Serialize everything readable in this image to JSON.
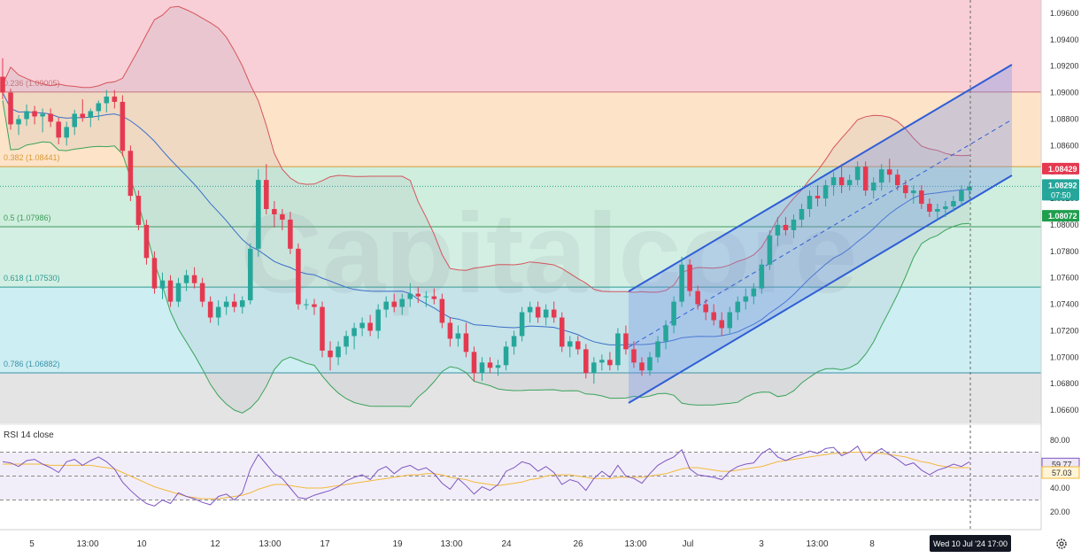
{
  "chart_data": {
    "type": "candlestick",
    "watermark": "Capitalcore",
    "colors": {
      "up": "#26a69a",
      "down": "#e53950",
      "bb_upper": "#d6545c",
      "bb_middle": "#3b6fc8",
      "bb_lower": "#3aa35a",
      "channel": "#2f5ed6",
      "rsi": "#7e57c2",
      "rsi_ma": "#f2b93b",
      "price_tag": "#26a69a",
      "red_tag": "#e53950",
      "green_tag": "#1f9e4e"
    },
    "price_axis": {
      "min": 1.065,
      "max": 1.097,
      "ticks": [
        "1.09600",
        "1.09400",
        "1.09200",
        "1.09000",
        "1.08800",
        "1.08600",
        "1.08400",
        "1.08200",
        "1.08000",
        "1.07800",
        "1.07600",
        "1.07400",
        "1.07200",
        "1.07000",
        "1.06800",
        "1.06600"
      ]
    },
    "fib_levels": [
      {
        "label": "0.236 (1.09005)",
        "value": 1.09005,
        "color": "#c8727a"
      },
      {
        "label": "0.382 (1.08441)",
        "value": 1.08441,
        "color": "#d89a3a"
      },
      {
        "label": "0.5 (1.07986)",
        "value": 1.07986,
        "color": "#3e9a5c"
      },
      {
        "label": "0.618 (1.07530)",
        "value": 1.0753,
        "color": "#2f9a91"
      },
      {
        "label": "0.786 (1.06882)",
        "value": 1.06882,
        "color": "#3a93a8"
      }
    ],
    "fib_zones": [
      {
        "from": 1.09005,
        "to": 1.097,
        "color": "#f8cfd6"
      },
      {
        "from": 1.08441,
        "to": 1.09005,
        "color": "#fde3c8"
      },
      {
        "from": 1.07986,
        "to": 1.08441,
        "color": "#cfeedd"
      },
      {
        "from": 1.0753,
        "to": 1.07986,
        "color": "#d3efe3"
      },
      {
        "from": 1.06882,
        "to": 1.0753,
        "color": "#cdeef2"
      },
      {
        "from": 1.065,
        "to": 1.06882,
        "color": "#e4e4e4"
      }
    ],
    "price_tags": [
      {
        "text": "1.08429",
        "value": 1.08429,
        "kind": "red"
      },
      {
        "text": "1.08292",
        "sub": "07:50",
        "value": 1.08292,
        "kind": "price"
      },
      {
        "text": "1.08072",
        "value": 1.08072,
        "kind": "green"
      }
    ],
    "time_labels": [
      "5",
      "13:00",
      "10",
      "12",
      "13:00",
      "17",
      "19",
      "13:00",
      "24",
      "26",
      "13:00",
      "Jul",
      "3",
      "13:00",
      "8"
    ],
    "crosshair_label": "Wed 10 Jul '24   17:00",
    "settings_icon": "gear-icon",
    "candles": [
      [
        1.0912,
        1.0926,
        1.0895,
        1.09
      ],
      [
        1.09,
        1.0903,
        1.0872,
        1.0876
      ],
      [
        1.0876,
        1.0883,
        1.0868,
        1.088
      ],
      [
        1.088,
        1.0891,
        1.0875,
        1.0886
      ],
      [
        1.0886,
        1.089,
        1.0876,
        1.0882
      ],
      [
        1.0882,
        1.0888,
        1.087,
        1.0884
      ],
      [
        1.0884,
        1.0888,
        1.0874,
        1.0878
      ],
      [
        1.0878,
        1.0881,
        1.0861,
        1.0866
      ],
      [
        1.0866,
        1.0878,
        1.086,
        1.0874
      ],
      [
        1.0874,
        1.0887,
        1.0868,
        1.0884
      ],
      [
        1.0884,
        1.0895,
        1.0878,
        1.0881
      ],
      [
        1.0881,
        1.0888,
        1.0874,
        1.0886
      ],
      [
        1.0886,
        1.0894,
        1.0879,
        1.0892
      ],
      [
        1.0892,
        1.0902,
        1.0885,
        1.0897
      ],
      [
        1.0897,
        1.0902,
        1.0888,
        1.0893
      ],
      [
        1.0893,
        1.0898,
        1.0852,
        1.0856
      ],
      [
        1.0856,
        1.086,
        1.0818,
        1.0822
      ],
      [
        1.0822,
        1.0826,
        1.0796,
        1.08
      ],
      [
        1.08,
        1.0804,
        1.077,
        1.0775
      ],
      [
        1.0775,
        1.078,
        1.0748,
        1.0752
      ],
      [
        1.0752,
        1.0764,
        1.0744,
        1.0758
      ],
      [
        1.0758,
        1.0762,
        1.0738,
        1.0742
      ],
      [
        1.0742,
        1.076,
        1.0738,
        1.0756
      ],
      [
        1.0756,
        1.0766,
        1.075,
        1.0762
      ],
      [
        1.0762,
        1.0768,
        1.0752,
        1.0756
      ],
      [
        1.0756,
        1.076,
        1.0738,
        1.0742
      ],
      [
        1.0742,
        1.0746,
        1.0726,
        1.073
      ],
      [
        1.073,
        1.0743,
        1.0724,
        1.0738
      ],
      [
        1.0738,
        1.0746,
        1.0732,
        1.0742
      ],
      [
        1.0742,
        1.0748,
        1.0734,
        1.0738
      ],
      [
        1.0738,
        1.0746,
        1.0733,
        1.0743
      ],
      [
        1.0743,
        1.0786,
        1.074,
        1.0782
      ],
      [
        1.0782,
        1.0842,
        1.0776,
        1.0834
      ],
      [
        1.0834,
        1.0846,
        1.0808,
        1.0812
      ],
      [
        1.0812,
        1.0818,
        1.0798,
        1.0808
      ],
      [
        1.0808,
        1.0812,
        1.0796,
        1.0804
      ],
      [
        1.0804,
        1.081,
        1.0778,
        1.0782
      ],
      [
        1.0782,
        1.0786,
        1.0736,
        1.074
      ],
      [
        1.074,
        1.0744,
        1.0736,
        1.074
      ],
      [
        1.074,
        1.0744,
        1.0732,
        1.0738
      ],
      [
        1.0738,
        1.0742,
        1.07,
        1.0705
      ],
      [
        1.0705,
        1.0712,
        1.069,
        1.07
      ],
      [
        1.07,
        1.0712,
        1.0694,
        1.0708
      ],
      [
        1.0708,
        1.072,
        1.0702,
        1.0716
      ],
      [
        1.0716,
        1.0726,
        1.0706,
        1.0722
      ],
      [
        1.0722,
        1.073,
        1.0716,
        1.0726
      ],
      [
        1.0726,
        1.0732,
        1.0716,
        1.072
      ],
      [
        1.072,
        1.074,
        1.0714,
        1.0736
      ],
      [
        1.0736,
        1.0746,
        1.073,
        1.0742
      ],
      [
        1.0742,
        1.0748,
        1.0734,
        1.0738
      ],
      [
        1.0738,
        1.0748,
        1.0732,
        1.0744
      ],
      [
        1.0744,
        1.0756,
        1.0738,
        1.0748
      ],
      [
        1.0748,
        1.0753,
        1.0741,
        1.0746
      ],
      [
        1.0746,
        1.075,
        1.0738,
        1.0746
      ],
      [
        1.0746,
        1.0752,
        1.074,
        1.0744
      ],
      [
        1.0744,
        1.0748,
        1.0722,
        1.0726
      ],
      [
        1.0726,
        1.073,
        1.0708,
        1.0714
      ],
      [
        1.0714,
        1.0724,
        1.0708,
        1.0718
      ],
      [
        1.0718,
        1.0726,
        1.07,
        1.0704
      ],
      [
        1.0704,
        1.0708,
        1.0682,
        1.0688
      ],
      [
        1.0688,
        1.07,
        1.0682,
        1.0696
      ],
      [
        1.0696,
        1.07,
        1.0688,
        1.0692
      ],
      [
        1.0692,
        1.0698,
        1.0686,
        1.0694
      ],
      [
        1.0694,
        1.0712,
        1.069,
        1.0708
      ],
      [
        1.0708,
        1.072,
        1.0702,
        1.0716
      ],
      [
        1.0716,
        1.0738,
        1.0712,
        1.0734
      ],
      [
        1.0734,
        1.0742,
        1.0726,
        1.0738
      ],
      [
        1.0738,
        1.0742,
        1.0726,
        1.073
      ],
      [
        1.073,
        1.074,
        1.0724,
        1.0736
      ],
      [
        1.0736,
        1.0742,
        1.0726,
        1.073
      ],
      [
        1.073,
        1.0734,
        1.0704,
        1.0708
      ],
      [
        1.0708,
        1.0716,
        1.07,
        1.0712
      ],
      [
        1.0712,
        1.0716,
        1.0702,
        1.0706
      ],
      [
        1.0706,
        1.071,
        1.0684,
        1.0688
      ],
      [
        1.0688,
        1.07,
        1.068,
        1.0696
      ],
      [
        1.0696,
        1.0702,
        1.069,
        1.0698
      ],
      [
        1.0698,
        1.0704,
        1.069,
        1.0694
      ],
      [
        1.0694,
        1.0722,
        1.069,
        1.0718
      ],
      [
        1.0718,
        1.0724,
        1.0702,
        1.0706
      ],
      [
        1.0706,
        1.0712,
        1.0692,
        1.0696
      ],
      [
        1.0696,
        1.07,
        1.0686,
        1.069
      ],
      [
        1.069,
        1.0704,
        1.0686,
        1.07
      ],
      [
        1.07,
        1.0716,
        1.0696,
        1.0712
      ],
      [
        1.0712,
        1.0728,
        1.0706,
        1.0724
      ],
      [
        1.0724,
        1.0746,
        1.0718,
        1.0742
      ],
      [
        1.0742,
        1.0776,
        1.0738,
        1.077
      ],
      [
        1.077,
        1.0774,
        1.0746,
        1.075
      ],
      [
        1.075,
        1.0754,
        1.0736,
        1.074
      ],
      [
        1.074,
        1.0744,
        1.0728,
        1.0734
      ],
      [
        1.0734,
        1.074,
        1.0724,
        1.0728
      ],
      [
        1.0728,
        1.0734,
        1.0716,
        1.0722
      ],
      [
        1.0722,
        1.0738,
        1.0718,
        1.0734
      ],
      [
        1.0734,
        1.0746,
        1.0728,
        1.0742
      ],
      [
        1.0742,
        1.0752,
        1.0736,
        1.0746
      ],
      [
        1.0746,
        1.0756,
        1.074,
        1.0752
      ],
      [
        1.0752,
        1.0774,
        1.0748,
        1.077
      ],
      [
        1.077,
        1.0796,
        1.0766,
        1.0792
      ],
      [
        1.0792,
        1.0806,
        1.0784,
        1.08
      ],
      [
        1.08,
        1.0806,
        1.0792,
        1.0796
      ],
      [
        1.0796,
        1.0808,
        1.079,
        1.0804
      ],
      [
        1.0804,
        1.0816,
        1.0798,
        1.0812
      ],
      [
        1.0812,
        1.0826,
        1.0806,
        1.0822
      ],
      [
        1.0822,
        1.083,
        1.0814,
        1.082
      ],
      [
        1.082,
        1.0834,
        1.0814,
        1.083
      ],
      [
        1.083,
        1.084,
        1.0822,
        1.0836
      ],
      [
        1.0836,
        1.0846,
        1.0824,
        1.083
      ],
      [
        1.083,
        1.0838,
        1.0826,
        1.0834
      ],
      [
        1.0834,
        1.0848,
        1.083,
        1.0844
      ],
      [
        1.0844,
        1.0848,
        1.0822,
        1.0826
      ],
      [
        1.0826,
        1.0836,
        1.082,
        1.0832
      ],
      [
        1.0832,
        1.0846,
        1.0826,
        1.0842
      ],
      [
        1.0842,
        1.085,
        1.0832,
        1.0838
      ],
      [
        1.0838,
        1.0842,
        1.0826,
        1.083
      ],
      [
        1.083,
        1.0834,
        1.082,
        1.0824
      ],
      [
        1.0824,
        1.083,
        1.0816,
        1.0826
      ],
      [
        1.0826,
        1.083,
        1.0812,
        1.0816
      ],
      [
        1.0816,
        1.082,
        1.0806,
        1.081
      ],
      [
        1.081,
        1.0816,
        1.0804,
        1.0812
      ],
      [
        1.0812,
        1.0818,
        1.0806,
        1.0814
      ],
      [
        1.0814,
        1.0822,
        1.081,
        1.0818
      ],
      [
        1.0818,
        1.083,
        1.0814,
        1.0826
      ],
      [
        1.0826,
        1.0832,
        1.082,
        1.0829
      ]
    ],
    "rsi": {
      "label": "RSI 14 close",
      "min": 20,
      "max": 80,
      "ticks": [
        "80.00",
        "60.00",
        "40.00",
        "20.00"
      ],
      "bands": [
        70,
        50,
        30
      ],
      "current": "59.77",
      "ma_current": "57.03",
      "values": [
        62,
        61,
        58,
        63,
        64,
        60,
        57,
        53,
        62,
        64,
        59,
        63,
        66,
        62,
        56,
        45,
        38,
        32,
        27,
        25,
        30,
        27,
        36,
        33,
        31,
        28,
        26,
        33,
        35,
        30,
        36,
        56,
        68,
        60,
        52,
        48,
        40,
        32,
        31,
        34,
        36,
        38,
        41,
        46,
        49,
        51,
        47,
        55,
        58,
        52,
        57,
        59,
        55,
        57,
        52,
        44,
        39,
        48,
        42,
        35,
        41,
        38,
        43,
        54,
        57,
        62,
        60,
        54,
        58,
        53,
        43,
        47,
        45,
        38,
        48,
        54,
        49,
        59,
        50,
        48,
        44,
        52,
        59,
        63,
        66,
        72,
        56,
        51,
        50,
        49,
        47,
        54,
        58,
        60,
        61,
        69,
        73,
        66,
        63,
        66,
        68,
        71,
        69,
        73,
        74,
        67,
        70,
        75,
        63,
        69,
        73,
        68,
        64,
        59,
        61,
        55,
        51,
        55,
        57,
        60,
        58,
        62
      ],
      "ma": [
        60,
        60,
        60,
        60,
        60,
        60,
        59,
        59,
        59,
        59,
        59,
        59,
        58,
        57,
        56,
        53,
        50,
        47,
        44,
        41,
        39,
        37,
        35,
        33,
        32,
        31,
        31,
        31,
        32,
        33,
        34,
        36,
        39,
        41,
        43,
        43,
        42,
        41,
        40,
        40,
        40,
        41,
        42,
        43,
        44,
        45,
        46,
        47,
        48,
        49,
        50,
        51,
        51,
        52,
        52,
        51,
        49,
        48,
        47,
        45,
        44,
        43,
        42,
        43,
        44,
        45,
        47,
        48,
        50,
        51,
        51,
        51,
        50,
        49,
        48,
        48,
        48,
        49,
        49,
        49,
        49,
        50,
        51,
        52,
        54,
        56,
        57,
        57,
        56,
        55,
        54,
        54,
        55,
        56,
        57,
        58,
        60,
        62,
        63,
        64,
        65,
        66,
        67,
        68,
        69,
        69,
        70,
        70,
        70,
        69,
        69,
        68,
        67,
        66,
        64,
        62,
        61,
        59,
        58,
        57,
        57,
        57
      ]
    }
  }
}
